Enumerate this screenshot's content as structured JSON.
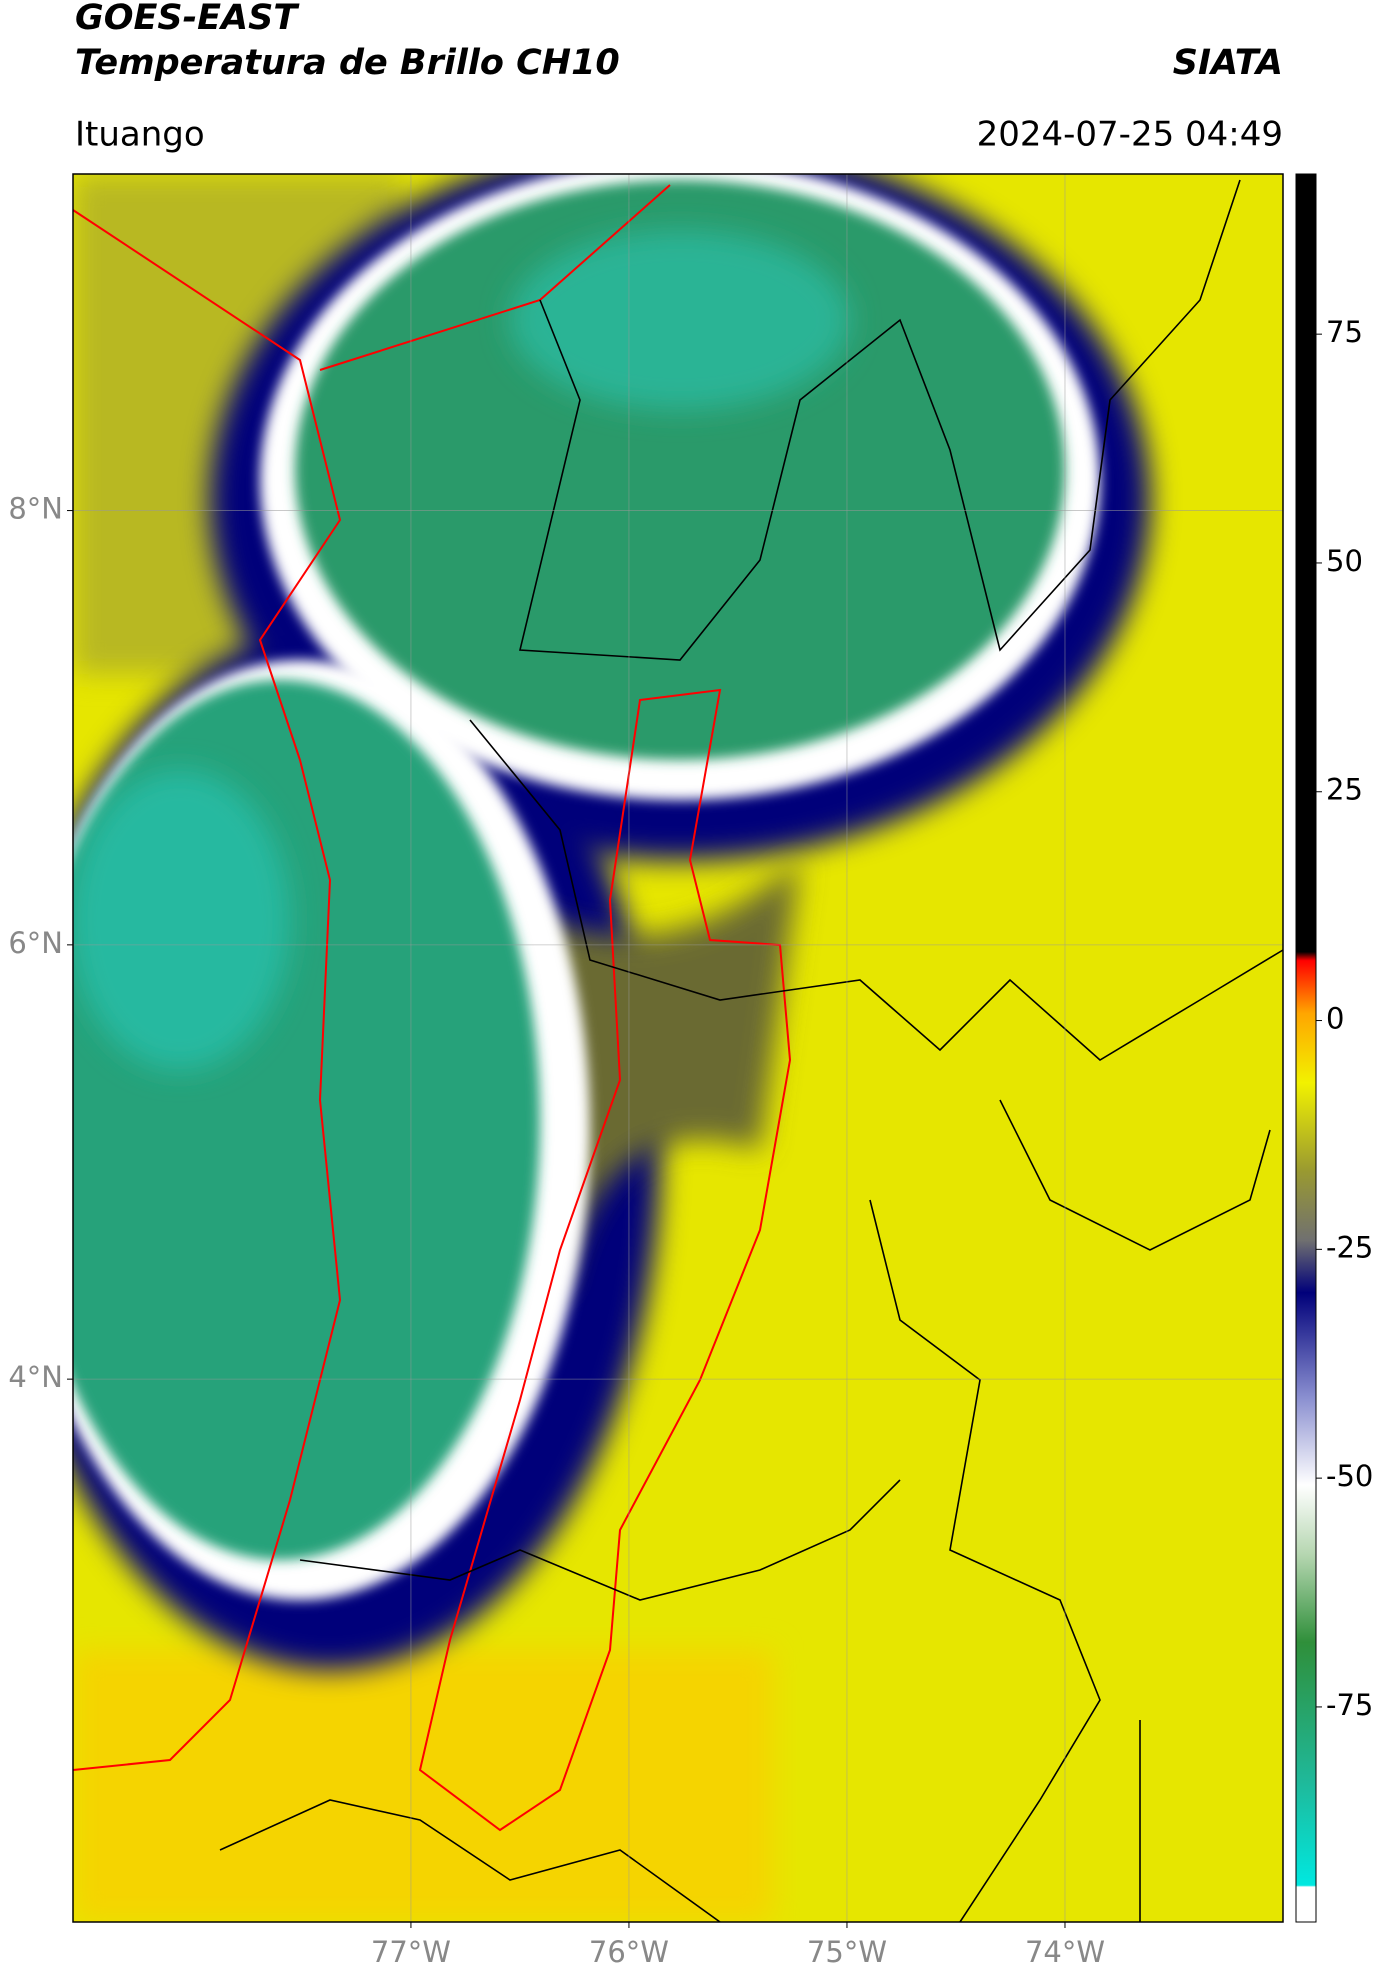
{
  "header": {
    "title": "GOES-EAST",
    "subtitle": "Temperatura de Brillo CH10",
    "brand": "SIATA",
    "location": "Ituango",
    "datetime": "2024-07-25 04:49"
  },
  "map": {
    "xlim": [
      -78.55,
      -73.0
    ],
    "ylim": [
      1.5,
      9.55
    ],
    "xticks": [
      {
        "value": -77,
        "label": "77°W"
      },
      {
        "value": -76,
        "label": "76°W"
      },
      {
        "value": -75,
        "label": "75°W"
      },
      {
        "value": -74,
        "label": "74°W"
      }
    ],
    "yticks": [
      {
        "value": 8,
        "label": "8°N"
      },
      {
        "value": 6,
        "label": "6°N"
      },
      {
        "value": 4,
        "label": "4°N"
      }
    ],
    "grid": true
  },
  "colorbar": {
    "lim": [
      -98.5,
      92.5
    ],
    "ticks": [
      75,
      50,
      25,
      0,
      -25,
      -50,
      -75
    ]
  }
}
